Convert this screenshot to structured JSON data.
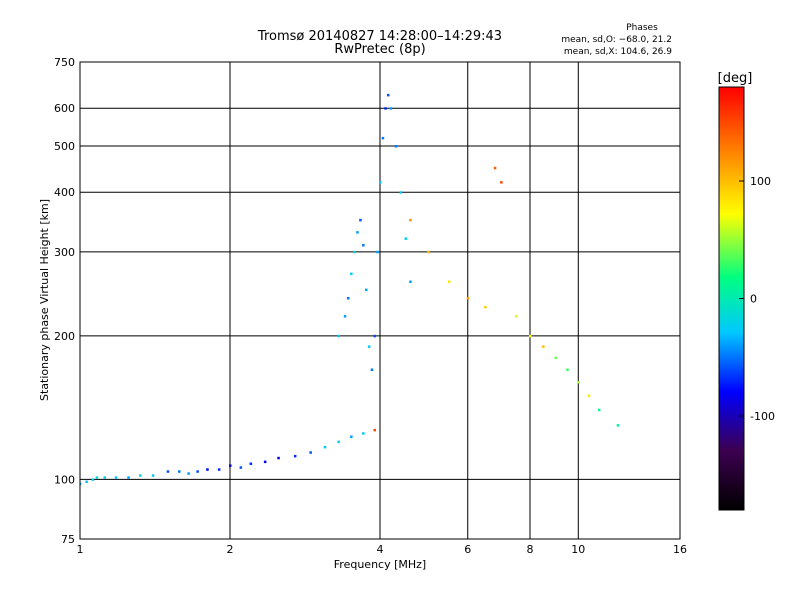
{
  "header": {
    "title_line1": "Tromsø 20140827 14:28:00–14:29:43",
    "title_line2": "RwPretec (8p)"
  },
  "phases_box": {
    "title": "Phases",
    "line_o": "mean, sd,O: −68.0, 21.2",
    "line_x": "mean, sd,X: 104.6, 26.9"
  },
  "chart_data": {
    "type": "scatter",
    "title": "Tromsø 20140827 14:28:00–14:29:43",
    "subtitle": "RwPretec (8p)",
    "xlabel": "Frequency [MHz]",
    "ylabel": "Stationary phase Virtual Height [km]",
    "x_scale": "log",
    "y_scale": "log",
    "xlim": [
      1,
      16
    ],
    "ylim": [
      75,
      750
    ],
    "x_ticks": [
      1,
      2,
      4,
      6,
      8,
      10,
      16
    ],
    "x_tick_labels": [
      "1",
      "2",
      "4",
      "6",
      "8",
      "10",
      "16"
    ],
    "y_ticks": [
      75,
      100,
      200,
      300,
      400,
      500,
      600,
      750
    ],
    "y_tick_labels": [
      "75",
      "100",
      "200",
      "300",
      "400",
      "500",
      "600",
      "750"
    ],
    "grid": true,
    "colorbar": {
      "label": "[deg]",
      "range": [
        -180,
        180
      ],
      "ticks": [
        100,
        0,
        -100
      ],
      "tick_labels": [
        "100",
        "0",
        "-100"
      ],
      "colors": [
        "#000000",
        "#3c0050",
        "#0000ff",
        "#00c8ff",
        "#00ff80",
        "#ffff00",
        "#ff8000",
        "#ff0000"
      ]
    },
    "series": [
      {
        "x": [
          1.0,
          1.03,
          1.06,
          1.08,
          1.12,
          1.18,
          1.25,
          1.32,
          1.4,
          1.5,
          1.58,
          1.65,
          1.72,
          1.8,
          1.9,
          2.0,
          2.1,
          2.2,
          2.35,
          2.5,
          2.7,
          2.9,
          3.1,
          3.3,
          3.5,
          3.7,
          3.9
        ],
        "y": [
          98,
          99,
          100,
          101,
          101,
          101,
          101,
          102,
          102,
          104,
          104,
          103,
          104,
          105,
          105,
          107,
          106,
          108,
          109,
          111,
          112,
          114,
          117,
          120,
          123,
          125,
          127
        ],
        "phase": [
          -20,
          -30,
          -25,
          -10,
          -20,
          -30,
          -40,
          -20,
          -30,
          -60,
          -50,
          -40,
          -60,
          -80,
          -70,
          -90,
          -60,
          -70,
          -80,
          -90,
          -70,
          -60,
          -30,
          -20,
          -40,
          -30,
          150
        ]
      },
      {
        "x": [
          3.3,
          3.4,
          3.45,
          3.5,
          3.55,
          3.6,
          3.65,
          3.7,
          3.75,
          3.8,
          3.85,
          3.9,
          3.95,
          4.0,
          4.05,
          4.1,
          4.15,
          4.2,
          4.3,
          4.4,
          4.5,
          4.6
        ],
        "y": [
          200,
          220,
          240,
          270,
          300,
          330,
          350,
          310,
          250,
          190,
          170,
          200,
          300,
          420,
          520,
          600,
          640,
          600,
          500,
          400,
          320,
          260
        ],
        "phase": [
          -30,
          -40,
          -50,
          -30,
          -20,
          -40,
          -60,
          -50,
          -40,
          -30,
          -50,
          -60,
          -40,
          -30,
          -50,
          -70,
          -60,
          -40,
          -50,
          -30,
          -20,
          -40
        ]
      },
      {
        "x": [
          4.6,
          5.0,
          5.5,
          6.0,
          6.5,
          6.8,
          7.0,
          7.5,
          8.0,
          8.5,
          9.0,
          9.5,
          10.0,
          10.5,
          11.0,
          12.0
        ],
        "y": [
          350,
          300,
          260,
          240,
          230,
          450,
          420,
          220,
          200,
          190,
          180,
          170,
          160,
          150,
          140,
          130
        ],
        "phase": [
          120,
          100,
          80,
          110,
          90,
          140,
          150,
          60,
          70,
          100,
          40,
          30,
          50,
          80,
          20,
          10
        ]
      }
    ]
  }
}
